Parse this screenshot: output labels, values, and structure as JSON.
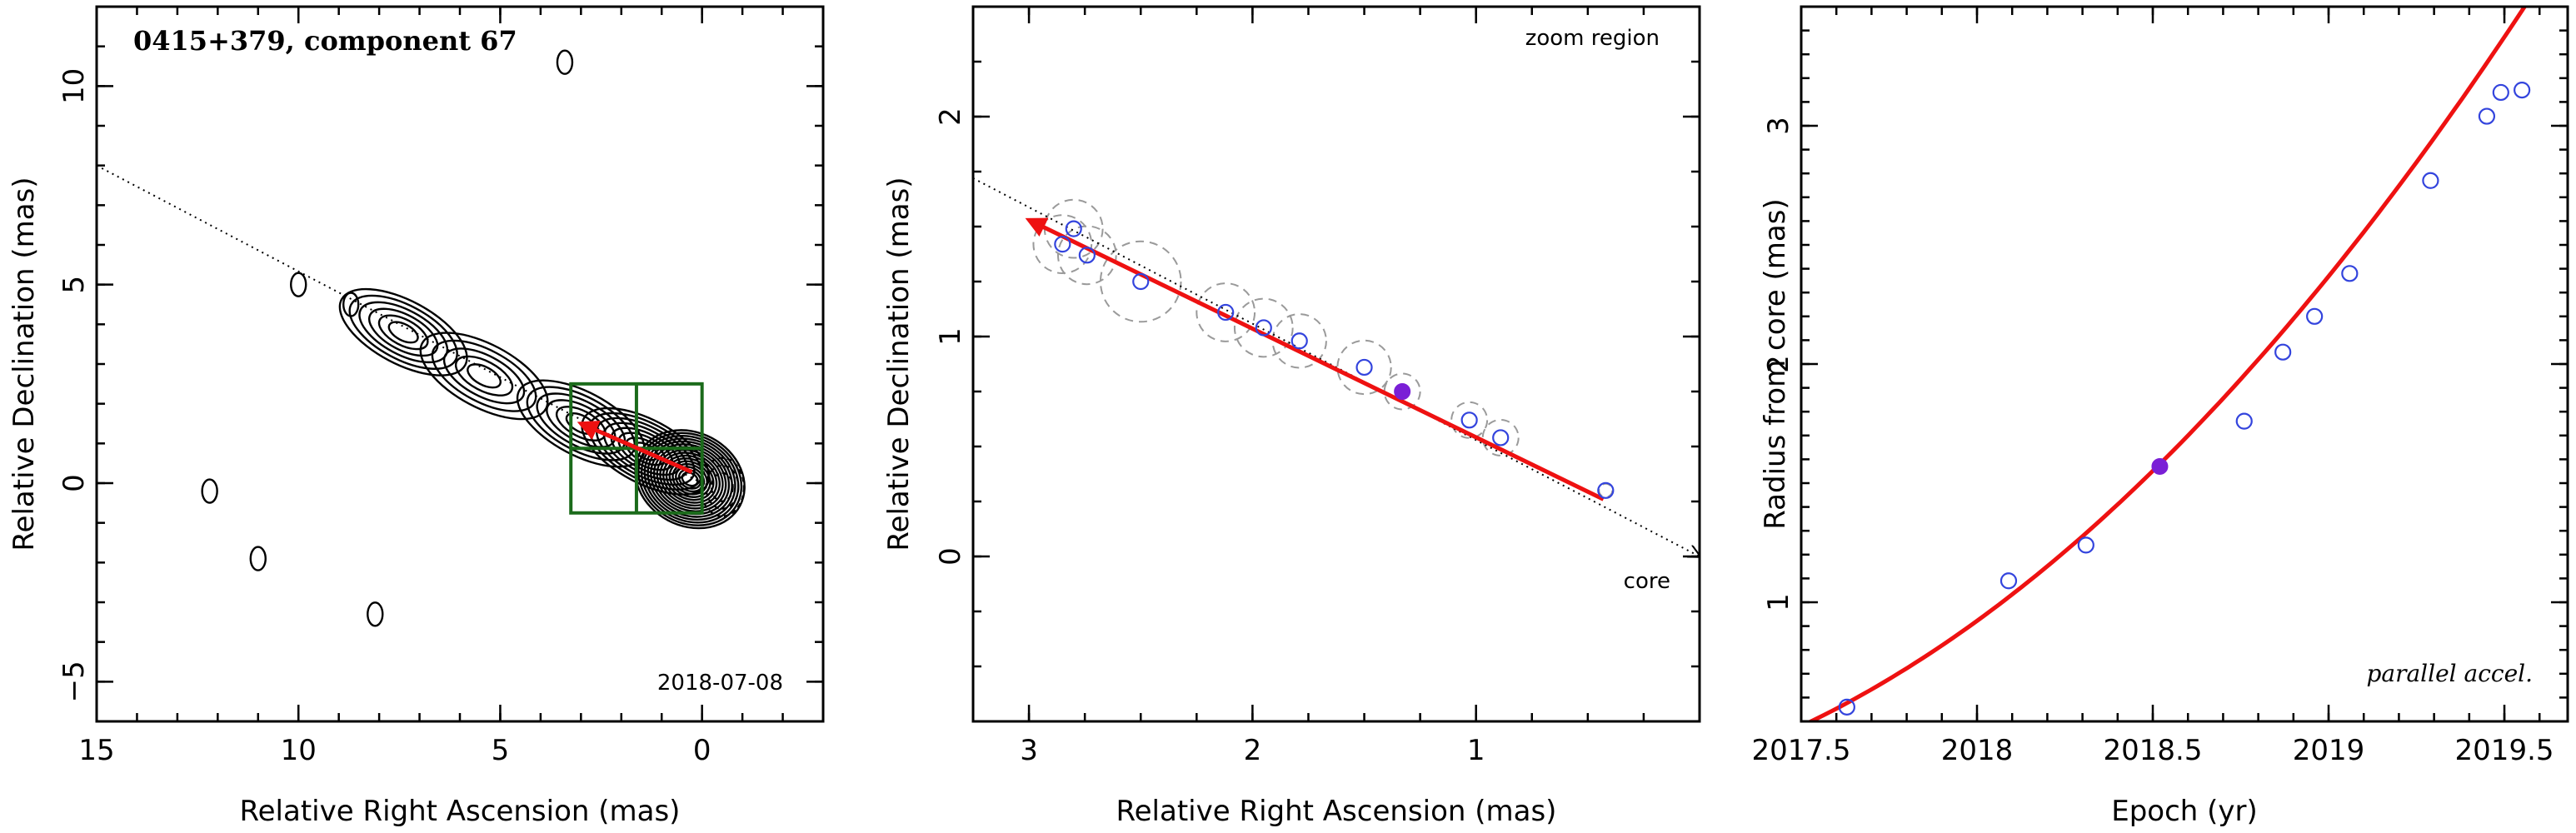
{
  "chart_data": [
    {
      "type": "scatter",
      "panel": "map",
      "title": "0415+379, component 67",
      "date_label": "2018-07-08",
      "xlabel": "Relative Right Ascension (mas)",
      "ylabel": "Relative Declination (mas)",
      "xlim": [
        15,
        -3
      ],
      "ylim": [
        -6,
        12
      ],
      "xticks": [
        15,
        10,
        5,
        0
      ],
      "yticks": [
        -5,
        0,
        5,
        10
      ],
      "grid": false,
      "trajectory_line": [
        [
          15.0,
          8.0
        ],
        [
          0.0,
          0.0
        ]
      ],
      "motion_vector": {
        "from": [
          0.25,
          0.28
        ],
        "to": [
          3.0,
          1.5
        ]
      },
      "zoom_region": {
        "ra": [
          0.0,
          3.25
        ],
        "dec": [
          -0.75,
          2.5
        ]
      },
      "jet_knots": [
        {
          "ra": 7.4,
          "dec": 3.8,
          "peak": 1.4
        },
        {
          "ra": 5.4,
          "dec": 2.7,
          "peak": 1.0
        },
        {
          "ra": 3.0,
          "dec": 1.5,
          "peak": 1.4
        },
        {
          "ra": 1.4,
          "dec": 0.8,
          "peak": 2.2
        },
        {
          "ra": 0.3,
          "dec": 0.1,
          "peak": 6.0
        }
      ],
      "isolated_contours": [
        {
          "ra": 10.0,
          "dec": 5.0
        },
        {
          "ra": 8.7,
          "dec": 4.5
        },
        {
          "ra": 12.2,
          "dec": -0.2
        },
        {
          "ra": 11.0,
          "dec": -1.9
        },
        {
          "ra": 8.1,
          "dec": -3.3
        },
        {
          "ra": 3.4,
          "dec": 10.6
        }
      ]
    },
    {
      "type": "scatter",
      "panel": "zoom",
      "label_top": "zoom region",
      "label_core": "core",
      "xlabel": "Relative Right Ascension (mas)",
      "ylabel": "Relative Declination (mas)",
      "xlim": [
        3.25,
        0.0
      ],
      "ylim": [
        -0.75,
        2.5
      ],
      "xticks": [
        3,
        2,
        1
      ],
      "yticks": [
        0,
        1,
        2
      ],
      "grid": false,
      "trajectory_line": [
        [
          3.25,
          1.72
        ],
        [
          0.0,
          0.0
        ]
      ],
      "fit_vector": {
        "from": [
          0.43,
          0.26
        ],
        "to": [
          3.0,
          1.53
        ]
      },
      "points": [
        {
          "ra": 2.8,
          "dec": 1.49,
          "err": 0.13
        },
        {
          "ra": 2.85,
          "dec": 1.42,
          "err": 0.13
        },
        {
          "ra": 2.74,
          "dec": 1.37,
          "err": 0.13
        },
        {
          "ra": 2.5,
          "dec": 1.25,
          "err": 0.18
        },
        {
          "ra": 2.12,
          "dec": 1.11,
          "err": 0.13
        },
        {
          "ra": 1.95,
          "dec": 1.04,
          "err": 0.13
        },
        {
          "ra": 1.79,
          "dec": 0.98,
          "err": 0.12
        },
        {
          "ra": 1.5,
          "dec": 0.86,
          "err": 0.12
        },
        {
          "ra": 1.33,
          "dec": 0.75,
          "err": 0.08,
          "reference_epoch": true
        },
        {
          "ra": 1.03,
          "dec": 0.62,
          "err": 0.08
        },
        {
          "ra": 0.89,
          "dec": 0.54,
          "err": 0.08
        },
        {
          "ra": 0.42,
          "dec": 0.3,
          "err": 0.03
        }
      ]
    },
    {
      "type": "scatter",
      "panel": "radius",
      "label_bottom": "parallel accel.",
      "xlabel": "Epoch (yr)",
      "ylabel": "Radius from core (mas)",
      "xlim": [
        2017.5,
        2019.68
      ],
      "ylim": [
        0.5,
        3.5
      ],
      "xticks": [
        2017.5,
        2018,
        2018.5,
        2019,
        2019.5
      ],
      "yticks": [
        1,
        2,
        3
      ],
      "grid": false,
      "fit_curve": {
        "x0": 2017.5,
        "y0": 0.48,
        "v": 0.6963,
        "a": 0.75,
        "x_end": 2019.66
      },
      "points": [
        {
          "epoch": 2017.63,
          "r": 0.56
        },
        {
          "epoch": 2018.09,
          "r": 1.09
        },
        {
          "epoch": 2018.31,
          "r": 1.24
        },
        {
          "epoch": 2018.52,
          "r": 1.57,
          "reference_epoch": true
        },
        {
          "epoch": 2018.76,
          "r": 1.76
        },
        {
          "epoch": 2018.87,
          "r": 2.05
        },
        {
          "epoch": 2018.96,
          "r": 2.2
        },
        {
          "epoch": 2019.06,
          "r": 2.38
        },
        {
          "epoch": 2019.29,
          "r": 2.77
        },
        {
          "epoch": 2019.45,
          "r": 3.04
        },
        {
          "epoch": 2019.49,
          "r": 3.14
        },
        {
          "epoch": 2019.55,
          "r": 3.15
        }
      ]
    }
  ],
  "colors": {
    "fit": "#ee1111",
    "points": "#3344dd",
    "reference_point": "#7a1fd6",
    "zoom_box": "#1b6b1b",
    "error_circles": "#9a9a9a"
  }
}
